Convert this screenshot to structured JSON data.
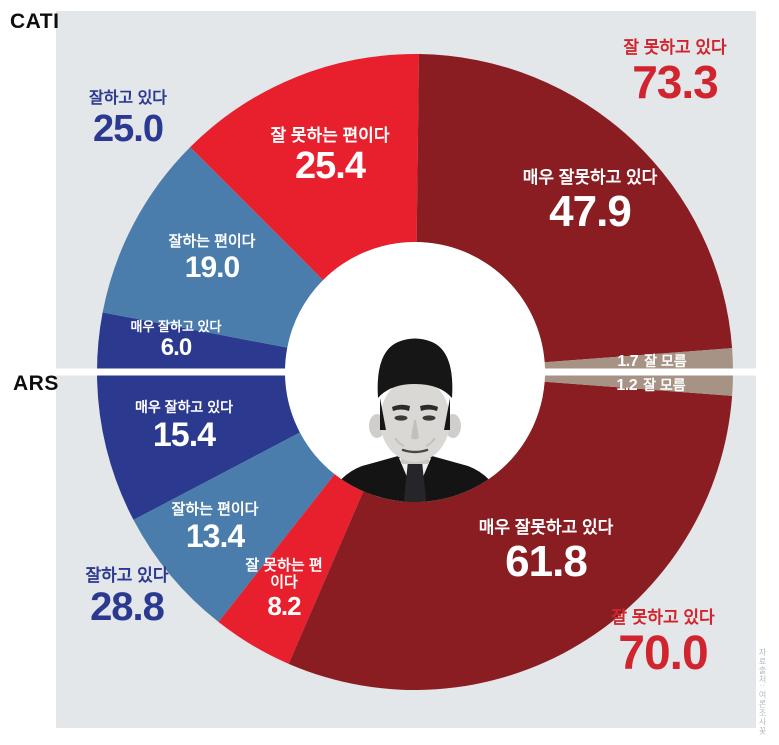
{
  "page": {
    "cati_label": "CATI",
    "ars_label": "ARS",
    "watermark": "자료출처: 여론조사꽃"
  },
  "colors": {
    "very_well": "#2b3a8f",
    "well": "#4a7dab",
    "poor": "#e8202d",
    "very_poor": "#8a1d22",
    "dont_know": "#a79385",
    "panel": "#e4e7ea",
    "divider": "#ffffff",
    "positive_text": "#2b3990",
    "negative_text": "#d0252e",
    "ink": "#0e0e0e",
    "watermark": "#b7babd"
  },
  "chart_data": {
    "type": "pie",
    "variant": "double-half-donut",
    "unit_note": "values are percentages; each half (CATI top, ARS bottom) spans 180°",
    "center": {
      "x": 415,
      "y": 372
    },
    "outer_radius": 318,
    "inner_radius": 130,
    "series": [
      {
        "name": "CATI",
        "half": "top",
        "segments": [
          {
            "label": "매우 잘하고 있다",
            "value": 6.0,
            "text": "6.0",
            "color_key": "very_well"
          },
          {
            "label": "잘하는 편이다",
            "value": 19.0,
            "text": "19.0",
            "color_key": "well"
          },
          {
            "label": "잘 못하는 편이다",
            "value": 25.4,
            "text": "25.4",
            "color_key": "poor"
          },
          {
            "label": "매우 잘못하고 있다",
            "value": 47.9,
            "text": "47.9",
            "color_key": "very_poor"
          },
          {
            "label": "잘 모름",
            "value": 1.7,
            "text": "1.7",
            "color_key": "dont_know"
          }
        ],
        "totals": {
          "positive": {
            "label": "잘하고 있다",
            "value": 25.0,
            "text": "25.0"
          },
          "negative": {
            "label": "잘 못하고 있다",
            "value": 73.3,
            "text": "73.3"
          }
        }
      },
      {
        "name": "ARS",
        "half": "bottom",
        "segments": [
          {
            "label": "매우 잘하고 있다",
            "value": 15.4,
            "text": "15.4",
            "color_key": "very_well"
          },
          {
            "label": "잘하는 편이다",
            "value": 13.4,
            "text": "13.4",
            "color_key": "well"
          },
          {
            "label": "잘 못하는 편이다",
            "value": 8.2,
            "text": "8.2",
            "color_key": "poor"
          },
          {
            "label": "매우 잘못하고 있다",
            "value": 61.8,
            "text": "61.8",
            "color_key": "very_poor"
          },
          {
            "label": "잘 모름",
            "value": 1.2,
            "text": "1.2",
            "color_key": "dont_know"
          }
        ],
        "totals": {
          "positive": {
            "label": "잘하고 있다",
            "value": 28.8,
            "text": "28.8"
          },
          "negative": {
            "label": "잘 못하고 있다",
            "value": 70.0,
            "text": "70.0"
          }
        }
      }
    ]
  }
}
